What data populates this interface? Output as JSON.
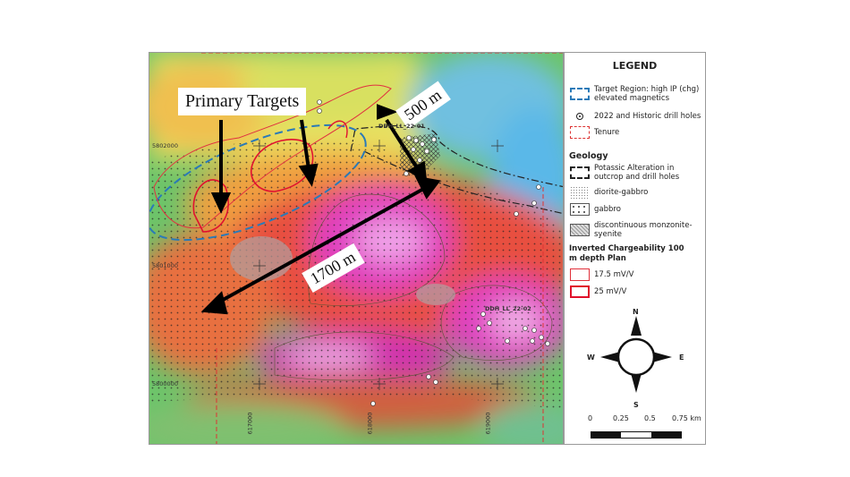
{
  "map": {
    "callouts": {
      "primary_targets": "Primary Targets",
      "dist_500": "500 m",
      "dist_1700": "1700 m"
    },
    "drill_labels": [
      "DDH_LL_22-01",
      "DDH_LL_22-02"
    ],
    "northings": [
      "5802000",
      "5801000",
      "5800000"
    ],
    "eastings": [
      "617000",
      "618000",
      "619000"
    ]
  },
  "legend": {
    "title": "LEGEND",
    "items": [
      {
        "label": "Target Region: high IP (chg) elevated magnetics",
        "color": "#2a7ab8"
      },
      {
        "label": "2022 and Historic drill holes"
      },
      {
        "label": "Tenure",
        "color": "#d33"
      }
    ],
    "geology_heading": "Geology",
    "geology": [
      {
        "label": "Potassic Alteration in outcrop and drill holes"
      },
      {
        "label": "diorite-gabbro"
      },
      {
        "label": "gabbro"
      },
      {
        "label": "discontinuous monzonite-syenite"
      }
    ],
    "chargeability_heading": "Inverted Chargeability 100 m depth Plan",
    "chargeability": [
      {
        "label": "17.5 mV/V",
        "color": "#e0303a"
      },
      {
        "label": "25 mV/V",
        "color": "#e0102a"
      }
    ],
    "compass": {
      "n": "N",
      "s": "S",
      "e": "E",
      "w": "W"
    },
    "scale": {
      "ticks": [
        "0",
        "0.25",
        "0.5",
        "0.75 km"
      ]
    }
  }
}
